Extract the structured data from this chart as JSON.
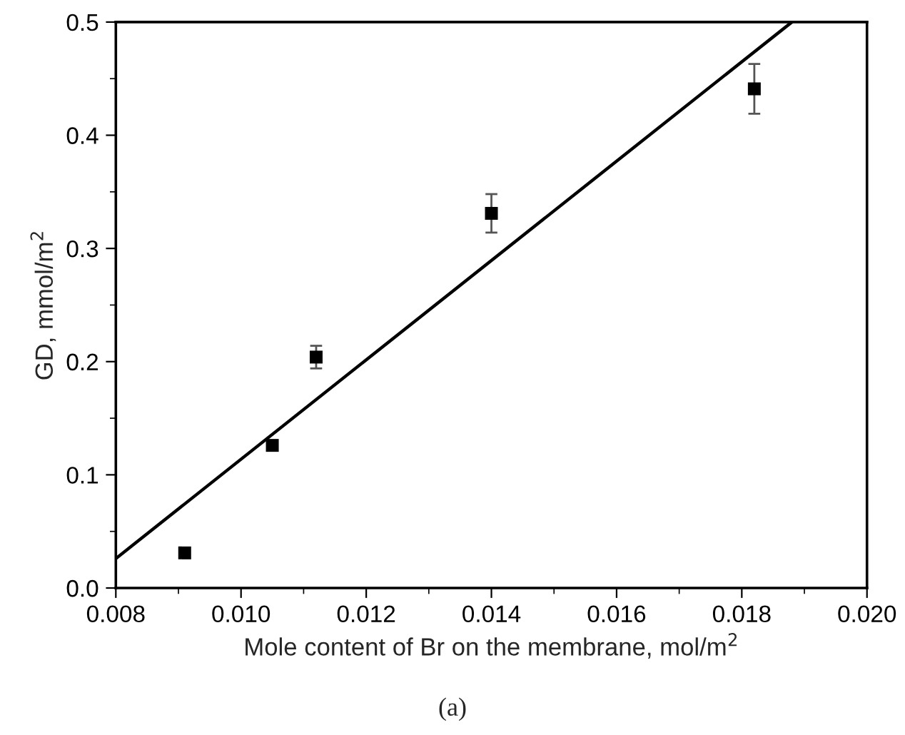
{
  "chart_data": {
    "type": "scatter",
    "xlabel": "Mole content of Br on the membrane, mol/m$^{2}$",
    "ylabel": "GD, mmol/m$^{2}$",
    "xlim": [
      0.008,
      0.02
    ],
    "ylim": [
      0.0,
      0.5
    ],
    "xticks": [
      {
        "value": 0.008,
        "label": "0.008"
      },
      {
        "value": 0.01,
        "label": "0.010"
      },
      {
        "value": 0.012,
        "label": "0.012"
      },
      {
        "value": 0.014,
        "label": "0.014"
      },
      {
        "value": 0.016,
        "label": "0.016"
      },
      {
        "value": 0.018,
        "label": "0.018"
      },
      {
        "value": 0.02,
        "label": "0.020"
      }
    ],
    "yticks": [
      {
        "value": 0.0,
        "label": "0.0"
      },
      0.1,
      0.2,
      0.3,
      0.4,
      0.5
    ],
    "grid": false,
    "series": [
      {
        "marker": "square",
        "color": "#000000",
        "x": [
          0.0091,
          0.0105,
          0.0112,
          0.014,
          0.0182
        ],
        "values": [
          0.031,
          0.126,
          0.204,
          0.331,
          0.441
        ],
        "errors": [
          null,
          0.004,
          0.01,
          0.017,
          0.022
        ]
      },
      {
        "type": "line",
        "color": "#000000",
        "x": [
          0.008,
          0.0188
        ],
        "values": [
          0.026,
          0.5
        ],
        "line_style": "solid"
      }
    ],
    "annotations": [
      "(a)"
    ]
  }
}
